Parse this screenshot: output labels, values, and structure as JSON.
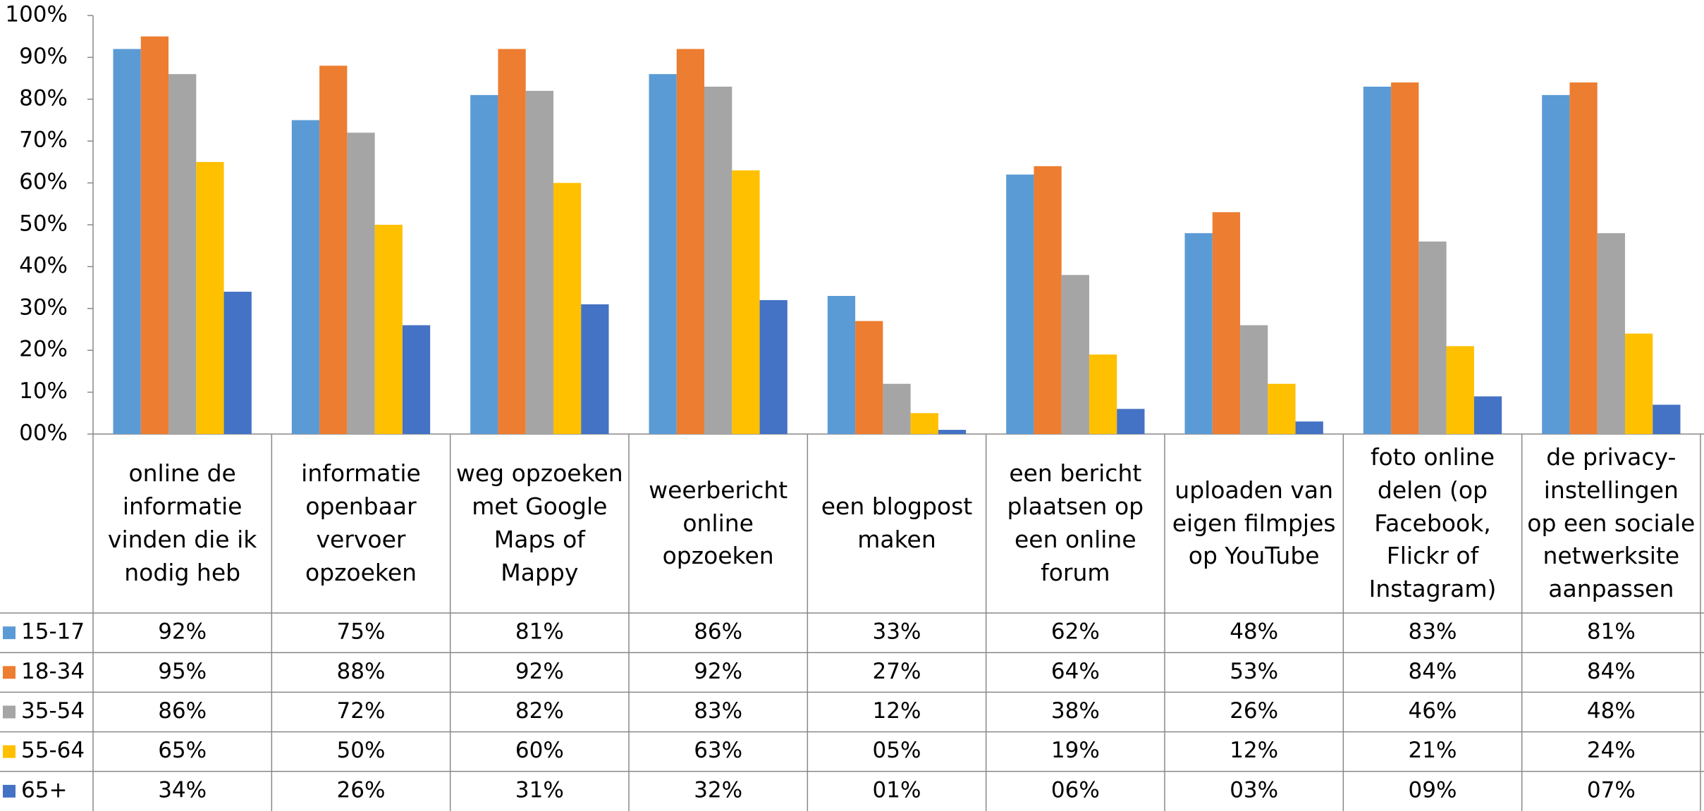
{
  "chart_data": {
    "type": "bar",
    "categories": [
      "online de informatie vinden die ik nodig heb",
      "informatie openbaar vervoer opzoeken",
      "weg opzoeken met Google Maps of Mappy",
      "weerbericht online opzoeken",
      "een blogpost maken",
      "een bericht plaatsen op een online forum",
      "uploaden van eigen filmpjes op YouTube",
      "foto online delen (op Facebook, Flickr of Instagram)",
      "de privacy-instellingen op een sociale netwerksite aanpassen"
    ],
    "series": [
      {
        "name": "15-17",
        "color": "#5b9bd5",
        "values": [
          92,
          75,
          81,
          86,
          33,
          62,
          48,
          83,
          81
        ],
        "value_labels": [
          "92%",
          "75%",
          "81%",
          "86%",
          "33%",
          "62%",
          "48%",
          "83%",
          "81%"
        ]
      },
      {
        "name": "18-34",
        "color": "#ed7d31",
        "values": [
          95,
          88,
          92,
          92,
          27,
          64,
          53,
          84,
          84
        ],
        "value_labels": [
          "95%",
          "88%",
          "92%",
          "92%",
          "27%",
          "64%",
          "53%",
          "84%",
          "84%"
        ]
      },
      {
        "name": "35-54",
        "color": "#a5a5a5",
        "values": [
          86,
          72,
          82,
          83,
          12,
          38,
          26,
          46,
          48
        ],
        "value_labels": [
          "86%",
          "72%",
          "82%",
          "83%",
          "12%",
          "38%",
          "26%",
          "46%",
          "48%"
        ]
      },
      {
        "name": "55-64",
        "color": "#ffc000",
        "values": [
          65,
          50,
          60,
          63,
          5,
          19,
          12,
          21,
          24
        ],
        "value_labels": [
          "65%",
          "50%",
          "60%",
          "63%",
          "05%",
          "19%",
          "12%",
          "21%",
          "24%"
        ]
      },
      {
        "name": "65+",
        "color": "#4472c4",
        "values": [
          34,
          26,
          31,
          32,
          1,
          6,
          3,
          9,
          7
        ],
        "value_labels": [
          "34%",
          "26%",
          "31%",
          "32%",
          "01%",
          "06%",
          "03%",
          "09%",
          "07%"
        ]
      }
    ],
    "ylim": [
      0,
      100
    ],
    "yticks": [
      {
        "value": 0,
        "label": "00%"
      },
      {
        "value": 10,
        "label": "10%"
      },
      {
        "value": 20,
        "label": "20%"
      },
      {
        "value": 30,
        "label": "30%"
      },
      {
        "value": 40,
        "label": "40%"
      },
      {
        "value": 50,
        "label": "50%"
      },
      {
        "value": 60,
        "label": "60%"
      },
      {
        "value": 70,
        "label": "70%"
      },
      {
        "value": 80,
        "label": "80%"
      },
      {
        "value": 90,
        "label": "90%"
      },
      {
        "value": 100,
        "label": "100%"
      }
    ],
    "grid": false
  }
}
